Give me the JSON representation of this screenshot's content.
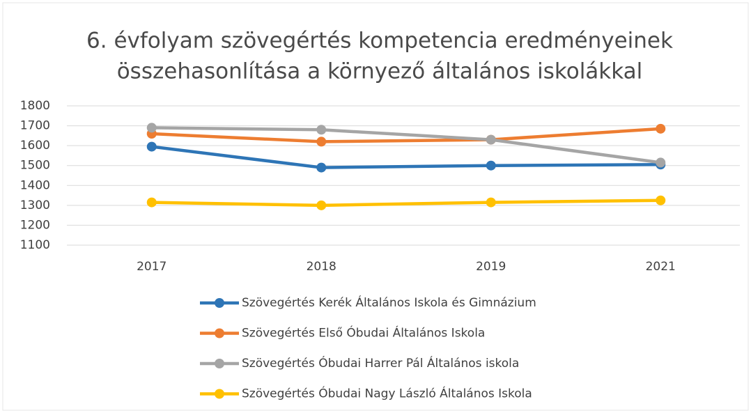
{
  "chart_data": {
    "type": "line",
    "title": [
      "6. évfolyam szövegértés kompetencia eredményeinek",
      "összehasonlítása a környező általános iskolákkal"
    ],
    "categories": [
      "2017",
      "2018",
      "2019",
      "2021"
    ],
    "series": [
      {
        "name": "Szövegértés Kerék Általános Iskola és Gimnázium",
        "color": "#2e75b6",
        "values": [
          1595,
          1490,
          1500,
          1505
        ]
      },
      {
        "name": "Szövegértés Első Óbudai Általános Iskola",
        "color": "#ed7d31",
        "values": [
          1660,
          1620,
          1630,
          1685
        ]
      },
      {
        "name": "Szövegértés Óbudai Harrer Pál Általános iskola",
        "color": "#a5a5a5",
        "values": [
          1690,
          1680,
          1630,
          1515
        ]
      },
      {
        "name": "Szövegértés Óbudai Nagy László Általános Iskola",
        "color": "#ffc000",
        "values": [
          1315,
          1300,
          1315,
          1325
        ]
      }
    ],
    "ylim": [
      1100,
      1800
    ],
    "yticks": [
      1100,
      1200,
      1300,
      1400,
      1500,
      1600,
      1700,
      1800
    ],
    "grid": true,
    "legend": "bottom"
  }
}
